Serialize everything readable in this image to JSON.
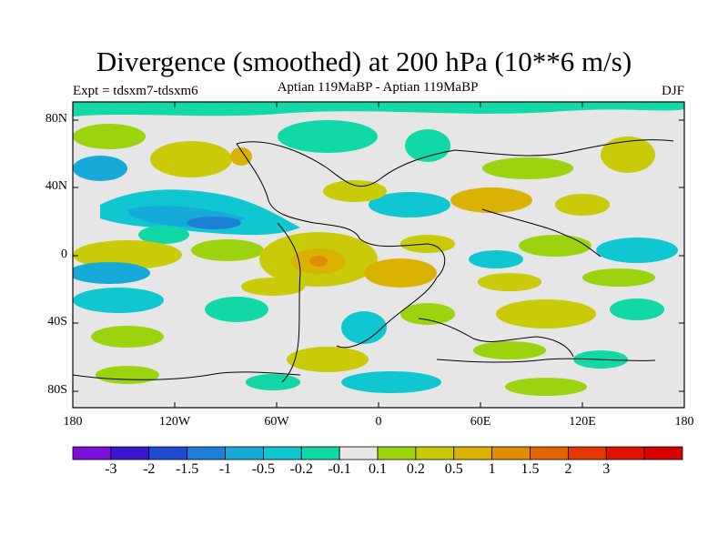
{
  "title": "Divergence (smoothed) at 200 hPa (10**6 m/s)",
  "experiment": "Expt = tdsxm7-tdsxm6",
  "subtitle": "Aptian   119MaBP - Aptian   119MaBP",
  "season": "DJF",
  "lat_ticks": [
    "80N",
    "40N",
    "0",
    "40S",
    "80S"
  ],
  "lon_ticks": [
    "180",
    "120W",
    "60W",
    "0",
    "60E",
    "120E",
    "180"
  ],
  "colorbar": {
    "colors": [
      "#7b11d8",
      "#3a17cf",
      "#1e4ad2",
      "#1d7fd6",
      "#16aad9",
      "#10c6d1",
      "#12d7a6",
      "#e6e6e6",
      "#9bd40e",
      "#c9cb08",
      "#d9b203",
      "#df8d02",
      "#e16504",
      "#e23a04",
      "#e01206",
      "#d80000"
    ],
    "labels": [
      "-3",
      "-2",
      "-1.5",
      "-1",
      "-0.5",
      "-0.2",
      "-0.1",
      "0.1",
      "0.2",
      "0.5",
      "1",
      "1.5",
      "2",
      "3"
    ]
  }
}
